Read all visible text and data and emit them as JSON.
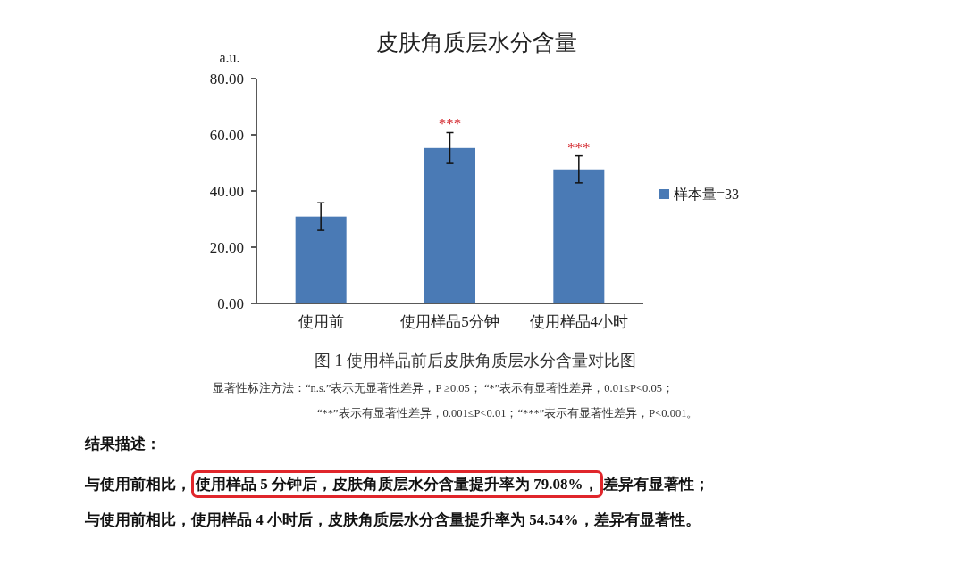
{
  "chart_data": {
    "type": "bar",
    "title": "皮肤角质层水分含量",
    "ylabel": "a.u.",
    "categories": [
      "使用前",
      "使用样品5分钟",
      "使用样品4小时"
    ],
    "series": [
      {
        "name": "样本量=33",
        "color": "#4a7ab5",
        "values": [
          30.9,
          55.3,
          47.7
        ],
        "errors": [
          4.9,
          5.5,
          4.8
        ]
      }
    ],
    "ylim": [
      0,
      80
    ],
    "yticks": [
      {
        "value": 0,
        "label": "0.00"
      },
      {
        "value": 20,
        "label": "20.00"
      },
      {
        "value": 40,
        "label": "40.00"
      },
      {
        "value": 60,
        "label": "60.00"
      },
      {
        "value": 80,
        "label": "80.00"
      }
    ],
    "legend": "right",
    "grid": false,
    "annotations": [
      {
        "text": "***",
        "x": "使用样品5分钟",
        "y": 61.0
      },
      {
        "text": "***",
        "x": "使用样品4小时",
        "y": 52.5
      },
      "图 1  使用样品前后皮肤角质层水分含量对比图",
      "显著性标注方法：“n.s.”表示无显著性差异，P ≥0.05；  “*”表示有显著性差异，0.01≤P<0.05；",
      "“**”表示有显著性差异，0.001≤P<0.01；“***”表示有显著性差异，P<0.001。",
      "结果描述：",
      "与使用前相比，使用样品 5 分钟后，皮肤角质层水分含量提升率为 79.08%，差异有显著性；",
      "与使用前相比，使用样品 4 小时后，皮肤角质层水分含量提升率为 54.54%，差异有显著性。"
    ]
  }
}
